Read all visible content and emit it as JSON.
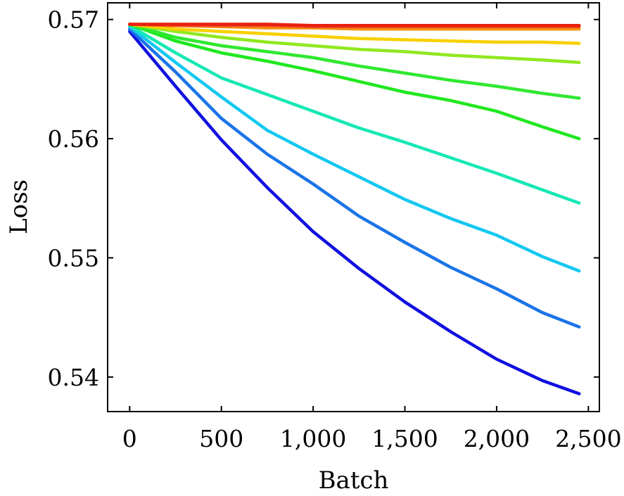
{
  "chart_data": {
    "type": "line",
    "title": "",
    "xlabel": "Batch",
    "ylabel": "Loss",
    "xlim": [
      -120,
      2560
    ],
    "ylim": [
      0.5371,
      0.5714
    ],
    "xticks": [
      0,
      500,
      1000,
      1500,
      2000,
      2500
    ],
    "xtick_labels": [
      "0",
      "500",
      "1,000",
      "1,500",
      "2,000",
      "2,500"
    ],
    "yticks": [
      0.54,
      0.55,
      0.56,
      0.57
    ],
    "ytick_labels": [
      "0.54",
      "0.55",
      "0.56",
      "0.57"
    ],
    "grid": false,
    "legend": "none",
    "x": [
      0,
      250,
      500,
      750,
      1000,
      1250,
      1500,
      1750,
      2000,
      2250,
      2450
    ],
    "series": [
      {
        "color": "#1010e0",
        "values": [
          0.569,
          0.5644,
          0.5599,
          0.5559,
          0.5522,
          0.5491,
          0.5463,
          0.5438,
          0.5415,
          0.5397,
          0.5386
        ]
      },
      {
        "color": "#1a74e8",
        "values": [
          0.5692,
          0.5656,
          0.5617,
          0.5587,
          0.5562,
          0.5535,
          0.5513,
          0.5492,
          0.5474,
          0.5454,
          0.5442
        ]
      },
      {
        "color": "#12c8f0",
        "values": [
          0.5694,
          0.5664,
          0.5635,
          0.5607,
          0.5587,
          0.5568,
          0.5549,
          0.5533,
          0.5519,
          0.5501,
          0.5489
        ]
      },
      {
        "color": "#16e8b4",
        "values": [
          0.5695,
          0.5672,
          0.5651,
          0.5637,
          0.5623,
          0.5609,
          0.5597,
          0.5584,
          0.5571,
          0.5557,
          0.5546
        ]
      },
      {
        "color": "#20e820",
        "values": [
          0.5696,
          0.5682,
          0.5672,
          0.5665,
          0.5657,
          0.5648,
          0.5639,
          0.5632,
          0.5623,
          0.561,
          0.56
        ]
      },
      {
        "color": "#30e830",
        "values": [
          0.5696,
          0.5685,
          0.5678,
          0.5673,
          0.5668,
          0.5661,
          0.5655,
          0.5649,
          0.5644,
          0.5638,
          0.5634
        ]
      },
      {
        "color": "#90e820",
        "values": [
          0.5696,
          0.569,
          0.5685,
          0.5681,
          0.5678,
          0.5675,
          0.5673,
          0.567,
          0.5668,
          0.5666,
          0.5664
        ]
      },
      {
        "color": "#f8d000",
        "values": [
          0.5696,
          0.5692,
          0.569,
          0.5688,
          0.5686,
          0.5684,
          0.5683,
          0.5682,
          0.5681,
          0.5681,
          0.568
        ]
      },
      {
        "color": "#f89010",
        "values": [
          0.5696,
          0.5695,
          0.5694,
          0.5693,
          0.5693,
          0.5692,
          0.5692,
          0.5692,
          0.5692,
          0.5692,
          0.5692
        ]
      },
      {
        "color": "#f05020",
        "values": [
          0.5696,
          0.5695,
          0.5695,
          0.5695,
          0.5694,
          0.5694,
          0.5694,
          0.5694,
          0.5694,
          0.5694,
          0.5694
        ]
      },
      {
        "color": "#e82010",
        "values": [
          0.5696,
          0.5696,
          0.5696,
          0.5696,
          0.5695,
          0.5695,
          0.5695,
          0.5695,
          0.5695,
          0.5695,
          0.5695
        ]
      }
    ]
  }
}
